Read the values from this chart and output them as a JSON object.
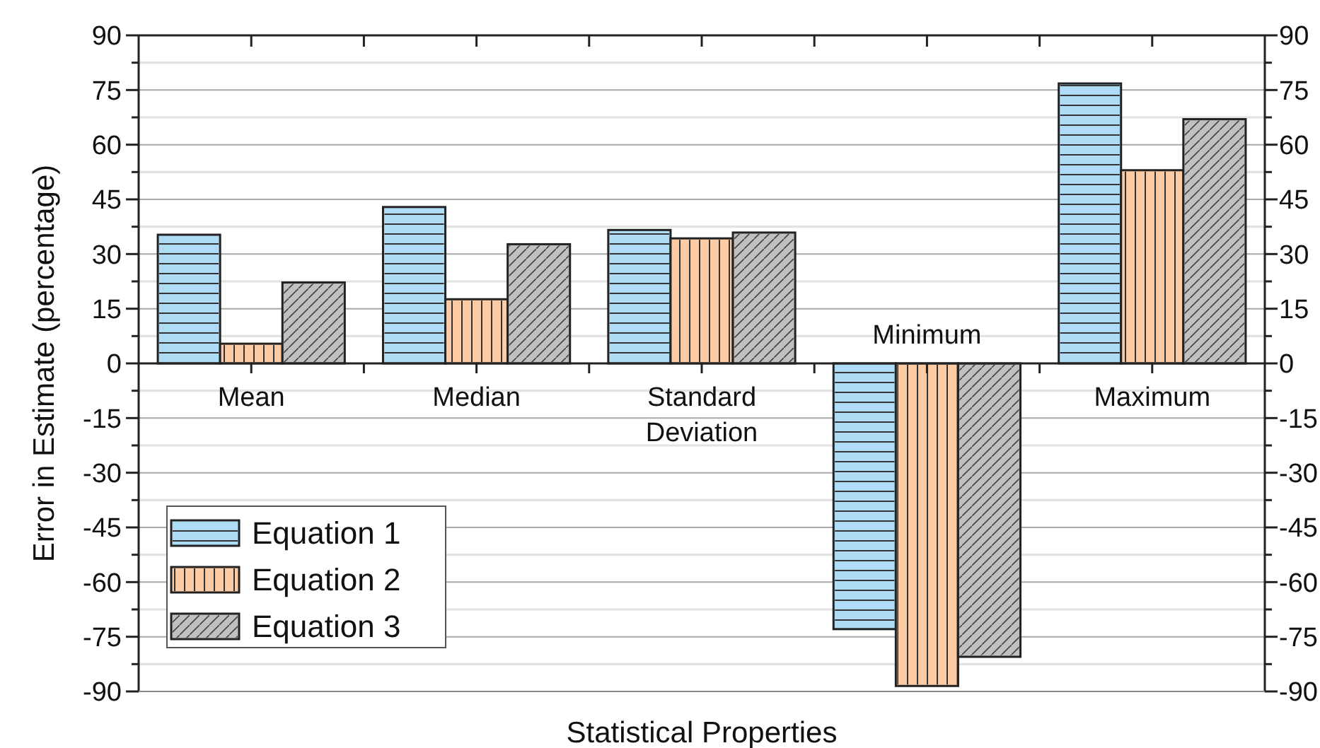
{
  "chart_data": {
    "type": "bar",
    "xlabel": "Statistical Properties",
    "ylabel": "Error in Estimate (percentage)",
    "categories": [
      "Mean",
      "Median",
      "Standard Deviation",
      "Minimum",
      "Maximum"
    ],
    "series": [
      {
        "name": "Equation 1",
        "color": "#aedcf5",
        "values": [
          35.3,
          42.9,
          36.6,
          -72.9,
          76.8
        ]
      },
      {
        "name": "Equation 2",
        "color": "#fdcba4",
        "values": [
          5.4,
          17.6,
          34.3,
          -88.5,
          53.0
        ]
      },
      {
        "name": "Equation 3",
        "color": "#c0c0c0",
        "values": [
          22.2,
          32.7,
          35.9,
          -80.5,
          67.0
        ]
      }
    ],
    "ylim": [
      -90,
      90
    ],
    "yticks": [
      -90,
      {
        "value": -82.5,
        "label": null
      },
      -75,
      {
        "value": -67.5,
        "label": null
      },
      -60,
      {
        "value": -52.5,
        "label": null
      },
      -45,
      {
        "value": -37.5,
        "label": null
      },
      -30,
      {
        "value": -22.5,
        "label": null
      },
      -15,
      {
        "value": -7.5,
        "label": null
      },
      0,
      {
        "value": 7.5,
        "label": null
      },
      15,
      {
        "value": 22.5,
        "label": null
      },
      30,
      {
        "value": 37.5,
        "label": null
      },
      45,
      {
        "value": 52.5,
        "label": null
      },
      60,
      {
        "value": 67.5,
        "label": null
      },
      75,
      {
        "value": 82.5,
        "label": null
      },
      90
    ],
    "y2lim": [
      -90,
      90
    ],
    "y2ticks": [
      -90,
      {
        "value": -82.5,
        "label": null
      },
      -75,
      {
        "value": -67.5,
        "label": null
      },
      -60,
      {
        "value": -52.5,
        "label": null
      },
      -45,
      {
        "value": -37.5,
        "label": null
      },
      -30,
      {
        "value": -22.5,
        "label": null
      },
      -15,
      {
        "value": -7.5,
        "label": null
      },
      0,
      {
        "value": 7.5,
        "label": null
      },
      15,
      {
        "value": 22.5,
        "label": null
      },
      30,
      {
        "value": 37.5,
        "label": null
      },
      45,
      {
        "value": 52.5,
        "label": null
      },
      60,
      {
        "value": 67.5,
        "label": null
      },
      75,
      {
        "value": 82.5,
        "label": null
      },
      90
    ],
    "grid": "y",
    "legend": "left"
  }
}
